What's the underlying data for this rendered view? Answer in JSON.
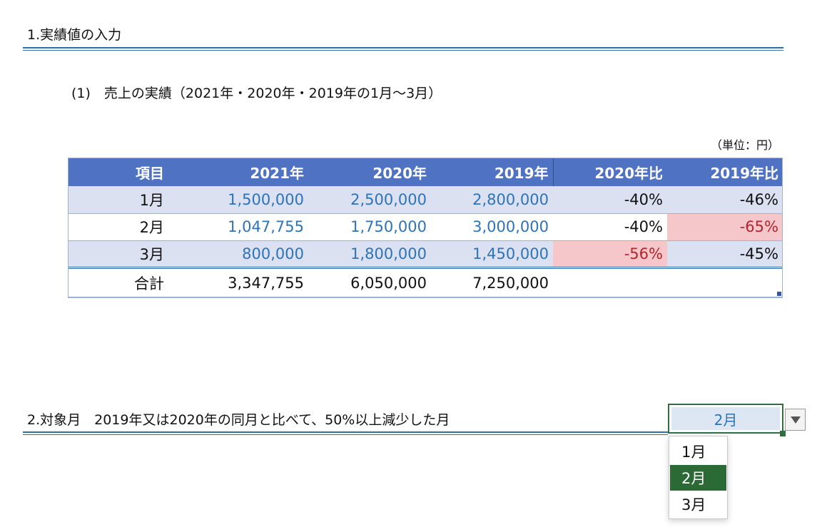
{
  "section1": {
    "heading": "1.実績値の入力",
    "subheading": "(1)　売上の実績（2021年・2020年・2019年の1月～3月）",
    "unit": "（単位：円）",
    "table": {
      "headers": [
        "項目",
        "2021年",
        "2020年",
        "2019年",
        "2020年比",
        "2019年比"
      ],
      "rows": [
        [
          "1月",
          "1,500,000",
          "2,500,000",
          "2,800,000",
          "-40%",
          "-46%"
        ],
        [
          "2月",
          "1,047,755",
          "1,750,000",
          "3,000,000",
          "-40%",
          "-65%"
        ],
        [
          "3月",
          "800,000",
          "1,800,000",
          "1,450,000",
          "-56%",
          "-45%"
        ]
      ],
      "total": [
        "合計",
        "3,347,755",
        "6,050,000",
        "7,250,000",
        "",
        ""
      ]
    }
  },
  "section2": {
    "heading": "2.対象月　2019年又は2020年の同月と比べて、50%以上減少した月",
    "selected_value": "2月",
    "dropdown_icon": "triangle-down-icon",
    "options": [
      "1月",
      "2月",
      "3月"
    ]
  },
  "colors": {
    "accent_rule": "#2f6ea9",
    "header_fill": "#4f73c2",
    "band_fill": "#dbe1f1",
    "input_text": "#2e73b8",
    "highlight_fill": "#f5c7cb",
    "highlight_text": "#b3242c",
    "selection_green": "#2b6a35"
  }
}
